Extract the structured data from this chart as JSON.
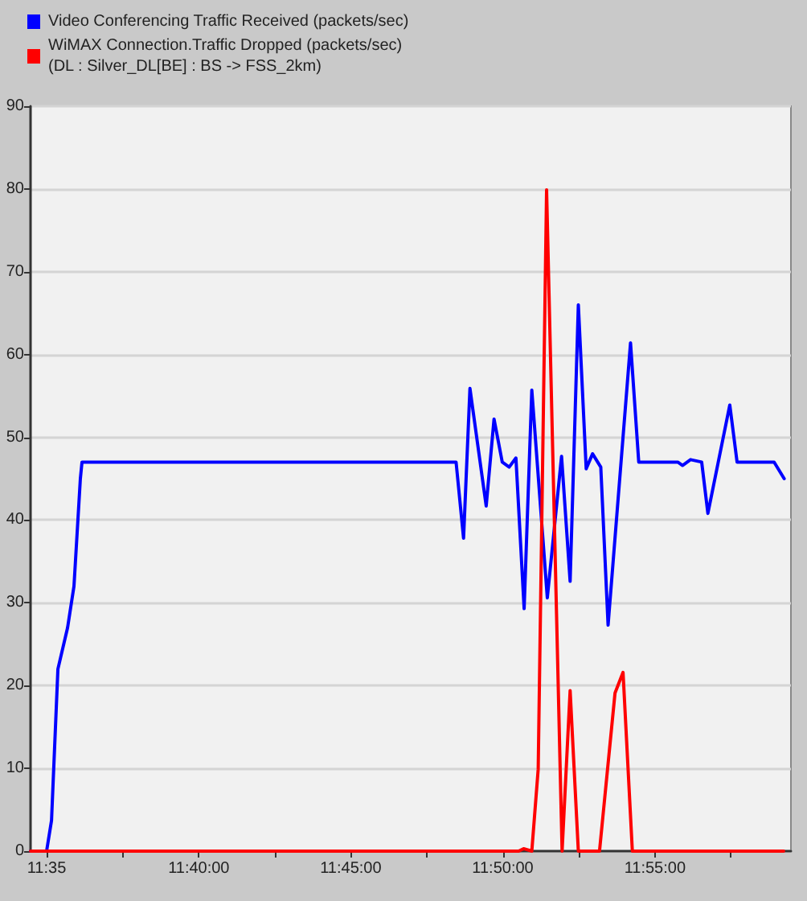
{
  "chart_data": {
    "type": "line",
    "legend": "top left",
    "grid": "y",
    "marker": "none",
    "line_style": "solid",
    "xlim": [
      11.5745,
      11.9912
    ],
    "xticks": [
      {
        "value": 11.5833,
        "label": "11:35"
      },
      {
        "value": 11.625,
        "label": null
      },
      {
        "value": 11.6667,
        "label": "11:40:00"
      },
      {
        "value": 11.7083,
        "label": null
      },
      {
        "value": 11.75,
        "label": "11:45:00"
      },
      {
        "value": 11.7917,
        "label": null
      },
      {
        "value": 11.8333,
        "label": "11:50:00"
      },
      {
        "value": 11.875,
        "label": null
      },
      {
        "value": 11.9167,
        "label": "11:55:00"
      },
      {
        "value": 11.9583,
        "label": null
      }
    ],
    "ylim": [
      0,
      90
    ],
    "yticks": [
      0,
      10,
      20,
      30,
      40,
      50,
      60,
      70,
      80,
      90
    ],
    "series": [
      {
        "name": "Video Conferencing Traffic Received (packets/sec)",
        "color": "#0000ff",
        "x": [
          11.5745,
          11.5833,
          11.586,
          11.5895,
          11.5948,
          11.5983,
          11.6018,
          11.6027,
          11.6633,
          11.681,
          11.8077,
          11.8118,
          11.8153,
          11.8242,
          11.8285,
          11.833,
          11.8368,
          11.8405,
          11.845,
          11.8492,
          11.8577,
          11.8655,
          11.8702,
          11.8747,
          11.879,
          11.8825,
          11.887,
          11.891,
          11.9033,
          11.9078,
          11.9292,
          11.9318,
          11.9362,
          11.9423,
          11.9457,
          11.9577,
          11.9617,
          11.982,
          11.9875
        ],
        "values": [
          0,
          0,
          3.7,
          22,
          27,
          32,
          45,
          47,
          47,
          47,
          47,
          37.8,
          55.9,
          41.7,
          52.2,
          47,
          46.4,
          47.5,
          29.3,
          55.7,
          30.6,
          47.7,
          32.6,
          66,
          46.2,
          48,
          46.4,
          27.3,
          61.4,
          47,
          47,
          46.6,
          47.3,
          47,
          40.8,
          53.9,
          47,
          47,
          45
        ]
      },
      {
        "name": "WiMAX Connection.Traffic Dropped (packets/sec)\n(DL : Silver_DL[BE] : BS -> FSS_2km)",
        "color": "#ff0000",
        "x": [
          11.5745,
          11.842,
          11.8447,
          11.8492,
          11.8527,
          11.8573,
          11.8658,
          11.8702,
          11.8747,
          11.8863,
          11.8948,
          11.8992,
          11.9043,
          11.9872
        ],
        "values": [
          0,
          0,
          0.3,
          0,
          9.9,
          79.9,
          0,
          19.4,
          0,
          0,
          19.1,
          21.6,
          0,
          0
        ]
      }
    ]
  }
}
